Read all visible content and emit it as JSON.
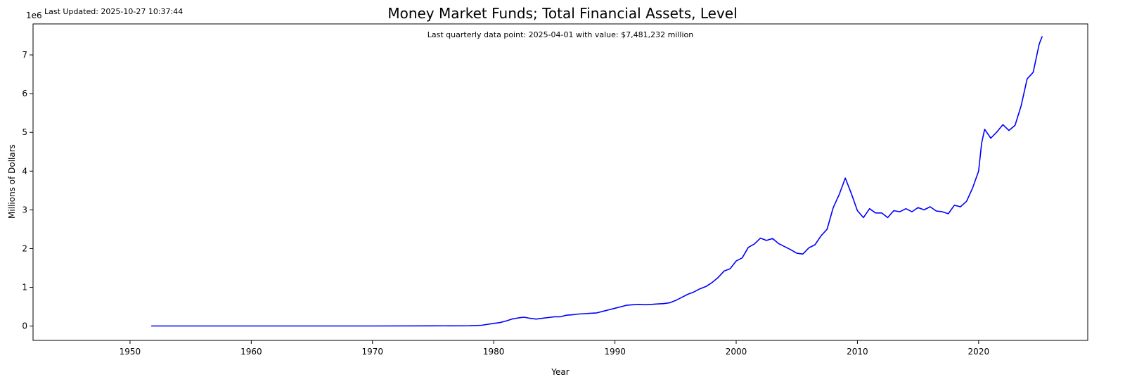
{
  "last_updated": "Last Updated: 2025-10-27 10:37:44",
  "chart_data": {
    "type": "line",
    "title": "Money Market Funds; Total Financial Assets, Level",
    "annotation": "Last quarterly data point: 2025-04-01 with value: $7,481,232 million",
    "xlabel": "Year",
    "ylabel": "Millions of Dollars",
    "y_offset_label": "1e6",
    "xlim": [
      1942,
      2029
    ],
    "ylim": [
      -0.37,
      7.8
    ],
    "x_ticks": [
      1950,
      1960,
      1970,
      1980,
      1990,
      2000,
      2010,
      2020
    ],
    "x_tick_labels": [
      "1950",
      "1960",
      "1970",
      "1980",
      "1990",
      "2000",
      "2010",
      "2020"
    ],
    "y_ticks": [
      0,
      1,
      2,
      3,
      4,
      5,
      6,
      7
    ],
    "y_tick_labels": [
      "0",
      "1",
      "2",
      "3",
      "4",
      "5",
      "6",
      "7"
    ],
    "y_units": "millions of dollars (scaled by 1e6)",
    "grid": false,
    "colors": {
      "line": "#0000ff"
    },
    "series": [
      {
        "x": [
          1951.75,
          1960,
          1970,
          1975,
          1978,
          1979,
          1980,
          1980.5,
          1981,
          1981.5,
          1982,
          1982.5,
          1983,
          1983.5,
          1984,
          1984.5,
          1985,
          1985.5,
          1986,
          1986.5,
          1987,
          1987.5,
          1988,
          1988.5,
          1989,
          1989.5,
          1990,
          1990.5,
          1991,
          1991.5,
          1992,
          1992.5,
          1993,
          1993.5,
          1994,
          1994.5,
          1995,
          1995.5,
          1996,
          1996.5,
          1997,
          1997.5,
          1998,
          1998.5,
          1999,
          1999.5,
          2000,
          2000.5,
          2001,
          2001.5,
          2002,
          2002.5,
          2003,
          2003.5,
          2004,
          2004.5,
          2005,
          2005.5,
          2006,
          2006.5,
          2007,
          2007.5,
          2008,
          2008.5,
          2009,
          2009.5,
          2010,
          2010.5,
          2011,
          2011.5,
          2012,
          2012.5,
          2013,
          2013.5,
          2014,
          2014.5,
          2015,
          2015.5,
          2016,
          2016.5,
          2017,
          2017.5,
          2018,
          2018.5,
          2019,
          2019.5,
          2020,
          2020.25,
          2020.5,
          2021,
          2021.5,
          2022,
          2022.5,
          2023,
          2023.5,
          2024,
          2024.5,
          2025,
          2025.25
        ],
        "y": [
          0.002,
          0.003,
          0.003,
          0.005,
          0.008,
          0.02,
          0.07,
          0.09,
          0.13,
          0.18,
          0.21,
          0.23,
          0.2,
          0.18,
          0.2,
          0.22,
          0.24,
          0.24,
          0.28,
          0.29,
          0.31,
          0.32,
          0.33,
          0.34,
          0.38,
          0.42,
          0.46,
          0.5,
          0.54,
          0.55,
          0.56,
          0.55,
          0.56,
          0.57,
          0.58,
          0.6,
          0.66,
          0.74,
          0.82,
          0.88,
          0.96,
          1.02,
          1.12,
          1.25,
          1.42,
          1.48,
          1.68,
          1.76,
          2.03,
          2.12,
          2.27,
          2.21,
          2.26,
          2.13,
          2.05,
          1.97,
          1.88,
          1.86,
          2.02,
          2.1,
          2.33,
          2.5,
          3.05,
          3.4,
          3.82,
          3.42,
          2.98,
          2.8,
          3.03,
          2.92,
          2.92,
          2.8,
          2.98,
          2.95,
          3.03,
          2.95,
          3.06,
          3.0,
          3.08,
          2.97,
          2.95,
          2.9,
          3.12,
          3.08,
          3.22,
          3.56,
          4.0,
          4.72,
          5.08,
          4.85,
          5.01,
          5.2,
          5.05,
          5.18,
          5.68,
          6.38,
          6.55,
          7.28,
          7.48
        ]
      }
    ]
  }
}
